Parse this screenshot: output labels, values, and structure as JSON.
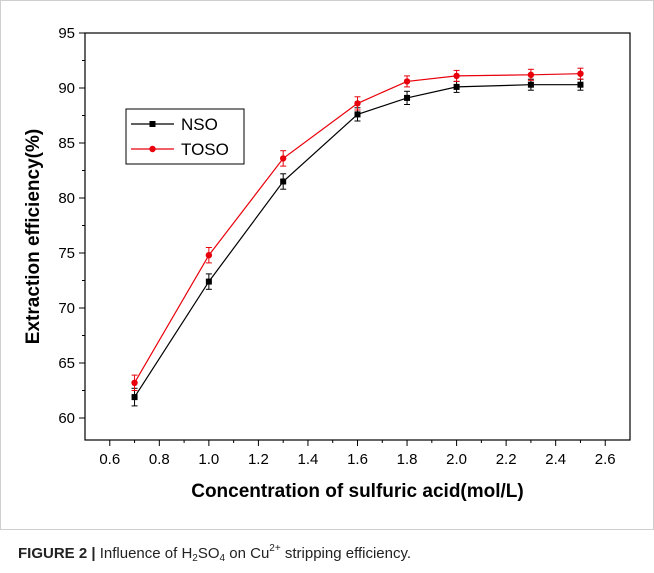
{
  "chart_data": {
    "type": "line",
    "xlabel": "Concentration of sulfuric acid(mol/L)",
    "ylabel": "Extraction efficiency(%)",
    "xlim": [
      0.5,
      2.7
    ],
    "ylim": [
      58,
      95
    ],
    "xticks": [
      "0.6",
      "0.8",
      "1.0",
      "1.2",
      "1.4",
      "1.6",
      "1.8",
      "2.0",
      "2.2",
      "2.4",
      "2.6"
    ],
    "yticks": [
      "60",
      "65",
      "70",
      "75",
      "80",
      "85",
      "90",
      "95"
    ],
    "x": [
      0.7,
      1.0,
      1.3,
      1.6,
      1.8,
      2.0,
      2.3,
      2.5
    ],
    "series": [
      {
        "name": "NSO",
        "color": "#000000",
        "marker": "square",
        "values": [
          61.9,
          72.4,
          81.5,
          87.6,
          89.1,
          90.1,
          90.3,
          90.3
        ],
        "errors": [
          0.8,
          0.7,
          0.7,
          0.6,
          0.6,
          0.5,
          0.5,
          0.5
        ]
      },
      {
        "name": "TOSO",
        "color": "#e8000b",
        "marker": "circle",
        "values": [
          63.2,
          74.8,
          83.6,
          88.6,
          90.6,
          91.1,
          91.2,
          91.3
        ],
        "errors": [
          0.7,
          0.7,
          0.7,
          0.6,
          0.5,
          0.5,
          0.5,
          0.5
        ]
      }
    ],
    "legend_position": "top-left",
    "grid": false
  },
  "caption": {
    "label": "FIGURE 2 |",
    "text_before": " Influence of H",
    "sub_2": "2",
    "so": "SO",
    "sub_4": "4",
    "text_mid": " on Cu",
    "sup": "2+",
    "text_after": " stripping efficiency."
  }
}
